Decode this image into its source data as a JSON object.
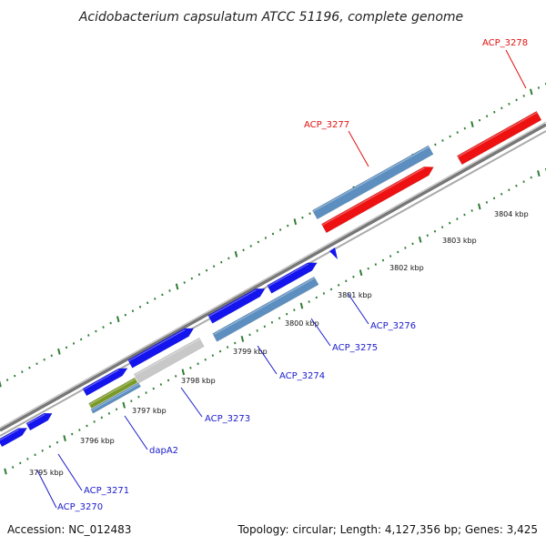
{
  "title": "Acidobacterium capsulatum ATCC 51196, complete genome",
  "footer": {
    "accession": "Accession: NC_012483",
    "summary": "Topology: circular; Length: 4,127,356 bp; Genes: 3,425"
  },
  "colors": {
    "forward_gene": "#1414ee",
    "reverse_gene": "#5c8fc0",
    "highlight_gene": "#ee1111",
    "grey_gene": "#c8c8c8",
    "olive_gene": "#7a9a26",
    "forward_label": "#1a1acc",
    "highlight_label": "#e01010",
    "backbone": "#8c8c8c",
    "tick": "#2e7d32"
  },
  "scale": {
    "unit": "kbp",
    "labels": [
      "3795 kbp",
      "3796 kbp",
      "3797 kbp",
      "3798 kbp",
      "3799 kbp",
      "3800 kbp",
      "3801 kbp",
      "3802 kbp",
      "3803 kbp",
      "3804 kbp"
    ]
  },
  "genes": [
    {
      "name": "ACP_3270",
      "strand": "forward"
    },
    {
      "name": "ACP_3271",
      "strand": "forward"
    },
    {
      "name": "dapA2",
      "strand": "forward"
    },
    {
      "name": "ACP_3273",
      "strand": "forward"
    },
    {
      "name": "ACP_3274",
      "strand": "forward"
    },
    {
      "name": "ACP_3275",
      "strand": "forward"
    },
    {
      "name": "ACP_3276",
      "strand": "forward"
    },
    {
      "name": "ACP_3277",
      "strand": "highlight"
    },
    {
      "name": "ACP_3278",
      "strand": "highlight"
    }
  ]
}
